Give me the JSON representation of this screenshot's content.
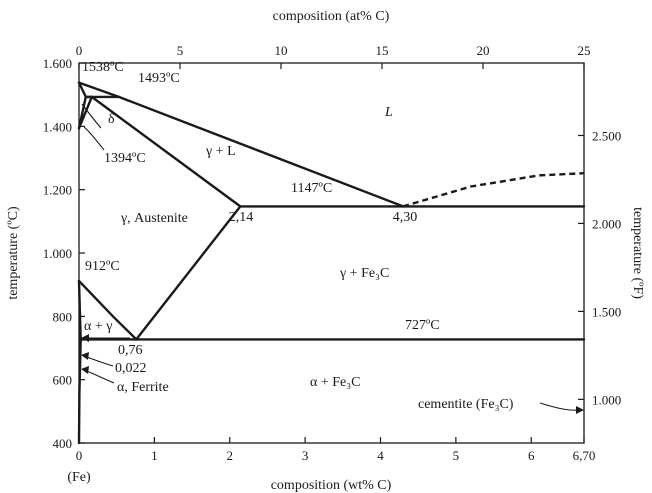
{
  "diagram": {
    "type": "phase-diagram",
    "axes": {
      "x_bottom": {
        "title": "composition (wt% C)",
        "range": [
          0,
          6.7
        ],
        "ticks": [
          {
            "value": 0,
            "label": "0"
          },
          {
            "value": 1,
            "label": "1"
          },
          {
            "value": 2,
            "label": "2"
          },
          {
            "value": 3,
            "label": "3"
          },
          {
            "value": 4,
            "label": "4"
          },
          {
            "value": 5,
            "label": "5"
          },
          {
            "value": 6,
            "label": "6"
          },
          {
            "value": 6.7,
            "label": "6,70"
          }
        ],
        "origin_note": "(Fe)"
      },
      "x_top": {
        "title": "composition (at% C)",
        "range": [
          0,
          25
        ],
        "ticks": [
          {
            "value": 0,
            "label": "0"
          },
          {
            "value": 5,
            "label": "5"
          },
          {
            "value": 10,
            "label": "10"
          },
          {
            "value": 15,
            "label": "15"
          },
          {
            "value": 20,
            "label": "20"
          },
          {
            "value": 25,
            "label": "25"
          }
        ]
      },
      "y_left": {
        "title": "temperature (ºC)",
        "range": [
          400,
          1600
        ],
        "ticks": [
          {
            "value": 400,
            "label": "400"
          },
          {
            "value": 600,
            "label": "600"
          },
          {
            "value": 800,
            "label": "800"
          },
          {
            "value": 1000,
            "label": "1.000"
          },
          {
            "value": 1200,
            "label": "1.200"
          },
          {
            "value": 1400,
            "label": "1.400"
          },
          {
            "value": 1600,
            "label": "1.600"
          }
        ]
      },
      "y_right": {
        "title": "temperature (ºF)",
        "ticks": [
          {
            "value": 1000,
            "label": "1.000"
          },
          {
            "value": 1500,
            "label": "1.500"
          },
          {
            "value": 2000,
            "label": "2.000"
          },
          {
            "value": 2500,
            "label": "2.500"
          }
        ]
      }
    },
    "phase_boundaries": [
      {
        "name": "liquidus-left",
        "points": [
          [
            0,
            1538
          ],
          [
            0.53,
            1493
          ],
          [
            4.3,
            1147
          ]
        ]
      },
      {
        "name": "liquidus-right",
        "style": "dashed",
        "points": [
          [
            4.3,
            1147
          ],
          [
            5.2,
            1210
          ],
          [
            6.1,
            1245
          ],
          [
            6.7,
            1252
          ]
        ]
      },
      {
        "name": "delta-solidus",
        "points": [
          [
            0,
            1538
          ],
          [
            0.09,
            1493
          ]
        ]
      },
      {
        "name": "peritectic-line",
        "points": [
          [
            0.09,
            1493
          ],
          [
            0.53,
            1493
          ]
        ]
      },
      {
        "name": "delta-gamma-upper",
        "points": [
          [
            0.09,
            1493
          ],
          [
            0.17,
            1493
          ]
        ]
      },
      {
        "name": "delta-gamma-lower",
        "points": [
          [
            0,
            1394
          ],
          [
            0.09,
            1493
          ]
        ]
      },
      {
        "name": "gamma-delta-boundary",
        "points": [
          [
            0,
            1394
          ],
          [
            0.17,
            1493
          ]
        ]
      },
      {
        "name": "austenite-solidus",
        "points": [
          [
            0.17,
            1493
          ],
          [
            2.14,
            1147
          ]
        ]
      },
      {
        "name": "eutectic-line",
        "points": [
          [
            2.14,
            1147
          ],
          [
            6.7,
            1147
          ]
        ]
      },
      {
        "name": "acm-line",
        "points": [
          [
            2.14,
            1147
          ],
          [
            0.76,
            727
          ]
        ]
      },
      {
        "name": "a3-line",
        "points": [
          [
            0,
            912
          ],
          [
            0.2,
            862
          ],
          [
            0.45,
            800
          ],
          [
            0.76,
            727
          ]
        ]
      },
      {
        "name": "alpha-solvus",
        "points": [
          [
            0,
            912
          ],
          [
            0.022,
            727
          ]
        ]
      },
      {
        "name": "eutectoid-line",
        "points": [
          [
            0.022,
            727
          ],
          [
            6.7,
            727
          ]
        ]
      },
      {
        "name": "ferrite-solvus",
        "points": [
          [
            0.022,
            727
          ],
          [
            0.005,
            560
          ],
          [
            0,
            400
          ]
        ]
      }
    ],
    "labels": {
      "t_1538": "1538ºC",
      "t_1493": "1493ºC",
      "delta": "δ",
      "t_1394": "1394ºC",
      "liquid": "L",
      "gamma_l": "γ + L",
      "t_1147": "1147ºC",
      "austenite": "γ, Austenite",
      "c_214": "2,14",
      "c_430": "4,30",
      "t_912": "912ºC",
      "gamma_fe3c": "γ + Fe₃C",
      "alpha_gamma": "α + γ",
      "t_727": "727ºC",
      "c_076": "0,76",
      "c_0022": "0,022",
      "ferrite": "α, Ferrite",
      "alpha_fe3c": "α + Fe₃C",
      "cementite": "cementite (Fe₃C)"
    }
  }
}
